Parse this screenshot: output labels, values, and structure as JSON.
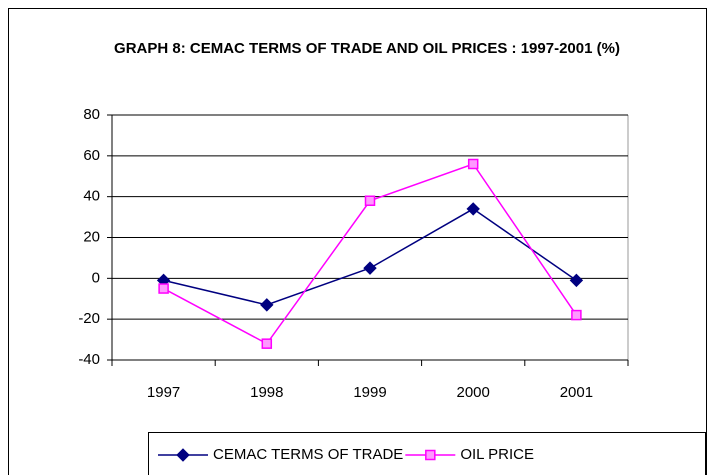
{
  "chart_data": {
    "type": "line",
    "title": "GRAPH 8: CEMAC TERMS OF TRADE AND OIL PRICES : 1997-2001 (%)",
    "categories": [
      "1997",
      "1998",
      "1999",
      "2000",
      "2001"
    ],
    "series": [
      {
        "name": "CEMAC TERMS OF TRADE",
        "color": "#000080",
        "marker": "diamond",
        "values": [
          -1,
          -13,
          5,
          34,
          -1
        ]
      },
      {
        "name": "OIL PRICE",
        "color": "#ff00ff",
        "marker": "square",
        "values": [
          -5,
          -32,
          38,
          56,
          -18
        ]
      }
    ],
    "ylim": [
      -40,
      80
    ],
    "yticks": [
      -40,
      -20,
      0,
      20,
      40,
      60,
      80
    ],
    "grid": true,
    "legend": "bottom"
  }
}
